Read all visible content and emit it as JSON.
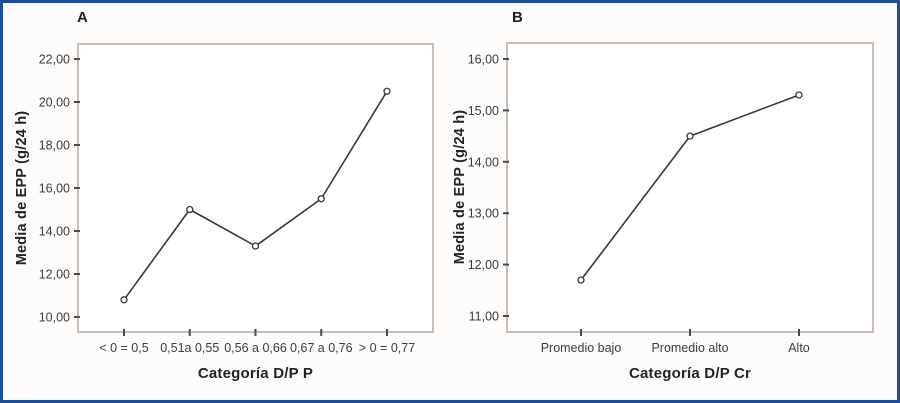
{
  "figure": {
    "colors": {
      "border": "#1d4e9e",
      "frame": "#c8beb5",
      "line": "#3e3531",
      "marker_fill": "#ffffff",
      "tick_text": "#3c3c3c",
      "title_text": "#232323",
      "plot_bg": "#ffffff",
      "canvas_bg": "#fdfcfb"
    }
  },
  "chart_data": [
    {
      "type": "line",
      "panel_label": "A",
      "title": "",
      "xlabel": "Categoría D/P P",
      "ylabel": "Media de EPP (g/24 h)",
      "categories": [
        "< 0 = 0,5",
        "0,51a 0,55",
        "0,56 a 0,66",
        "0,67 a 0,76",
        "> 0 = 0,77"
      ],
      "values": [
        10.8,
        15.0,
        13.3,
        15.5,
        20.5
      ],
      "ylim": [
        10,
        22
      ],
      "ytick_step": 2,
      "ytick_labels": [
        "10,00",
        "12,00",
        "14,00",
        "16,00",
        "18,00",
        "20,00",
        "22,00"
      ],
      "grid": false,
      "legend": null,
      "marker": "open-circle"
    },
    {
      "type": "line",
      "panel_label": "B",
      "title": "",
      "xlabel": "Categoría D/P Cr",
      "ylabel": "Media de EPP (g/24 h)",
      "categories": [
        "Promedio bajo",
        "Promedio alto",
        "Alto"
      ],
      "values": [
        11.7,
        14.5,
        15.3
      ],
      "ylim": [
        11,
        16
      ],
      "ytick_step": 1,
      "ytick_labels": [
        "11,00",
        "12,00",
        "13,00",
        "14,00",
        "15,00",
        "16,00"
      ],
      "grid": false,
      "legend": null,
      "marker": "open-circle"
    }
  ]
}
